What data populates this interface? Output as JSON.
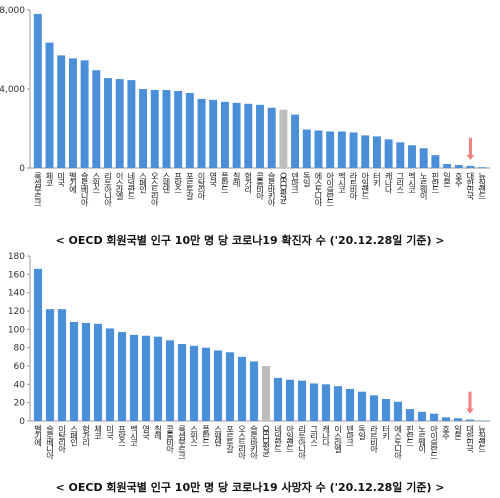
{
  "colors": {
    "bar": "#4a8fd8",
    "oecd_bar": "#bdbdbd",
    "arrow": "#f08080",
    "axis": "#999999",
    "grid": "#dddddd"
  },
  "chart_data": [
    {
      "type": "bar",
      "caption": "< OECD 회원국별 인구 10만 명 당 코로나19 확진자 수 ('20.12.28일 기준) >",
      "ylim": [
        0,
        8000
      ],
      "yticks": [
        0,
        4000,
        8000
      ],
      "ytick_labels": [
        "0",
        "4,000",
        "8,000"
      ],
      "grid": false,
      "highlight_category": "OECD평균",
      "arrow_category": "대한민국",
      "categories": [
        "룩셈부르크",
        "체코",
        "미국",
        "벨기에",
        "슬로베니아",
        "스위스",
        "리투아니아",
        "이스라엘",
        "네덜란드",
        "스페인",
        "오스트리아",
        "스웨덴",
        "프랑스",
        "포르투갈",
        "이탈리아",
        "영국",
        "폴란드",
        "칠레",
        "헝가리",
        "콜롬비아",
        "슬로바키아",
        "OECD평균",
        "덴마크",
        "독일",
        "에스토니아",
        "아이슬란드",
        "멕시코",
        "라트비아",
        "아일랜드",
        "터키",
        "캐나다",
        "그리스",
        "멕시코",
        "노르웨이",
        "핀란드",
        "일본",
        "호주",
        "대한민국",
        "뉴질랜드"
      ],
      "values": [
        7800,
        6350,
        5700,
        5550,
        5450,
        4950,
        4550,
        4500,
        4450,
        4000,
        3950,
        3950,
        3900,
        3800,
        3500,
        3450,
        3350,
        3300,
        3250,
        3200,
        3050,
        2950,
        2700,
        1950,
        1900,
        1850,
        1850,
        1800,
        1650,
        1600,
        1450,
        1300,
        1150,
        1000,
        650,
        200,
        150,
        110,
        40
      ]
    },
    {
      "type": "bar",
      "caption": "< OECD 회원국별 인구 10만 명 당 코로나19 사망자 수 ('20.12.28일 기준) >",
      "ylim": [
        0,
        180
      ],
      "yticks": [
        0,
        20,
        40,
        60,
        80,
        100,
        120,
        140,
        160,
        180
      ],
      "ytick_labels": [
        "0",
        "20",
        "40",
        "60",
        "80",
        "100",
        "120",
        "140",
        "160",
        "180"
      ],
      "grid": false,
      "highlight_category": "OECD평균",
      "arrow_category": "대한민국",
      "categories": [
        "벨기에",
        "슬로베니아",
        "이탈리아",
        "스페인",
        "헝가리",
        "체코",
        "미국",
        "프랑스",
        "멕시코",
        "영국",
        "칠레",
        "콜롬비아",
        "룩셈부르크",
        "스위스",
        "폴란드",
        "스웨덴",
        "포르투갈",
        "오스트리아",
        "슬로바키아",
        "OECD평균",
        "네덜란드",
        "아일랜드",
        "리투아니아",
        "그리스",
        "캐나다",
        "이스라엘",
        "덴마크",
        "독일",
        "라트비아",
        "터키",
        "에스토니아",
        "핀란드",
        "노르웨이",
        "아이슬란드",
        "호주",
        "일본",
        "대한민국",
        "뉴질랜드"
      ],
      "values": [
        166,
        122,
        122,
        108,
        107,
        106,
        101,
        97,
        94,
        93,
        92,
        88,
        84,
        82,
        80,
        77,
        75,
        70,
        65,
        60,
        47,
        45,
        44,
        41,
        40,
        38,
        35,
        32,
        28,
        24,
        21,
        13,
        10,
        8,
        4,
        3,
        1.5,
        0.5
      ]
    }
  ]
}
